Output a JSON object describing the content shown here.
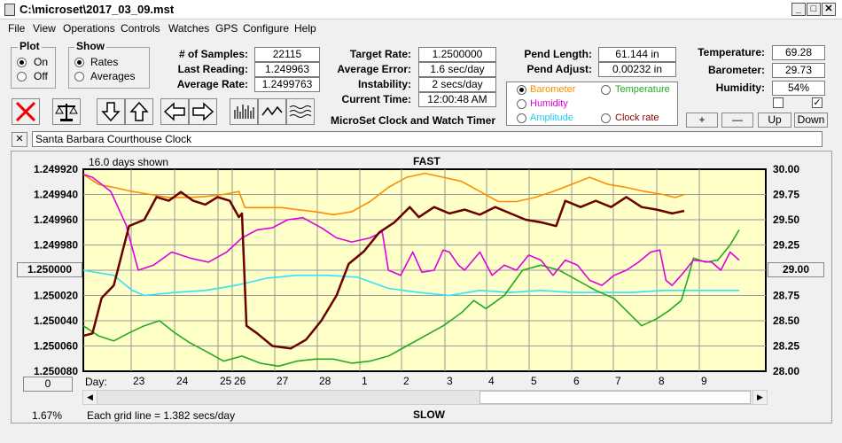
{
  "window": {
    "title": "C:\\microset\\2017_03_09.mst"
  },
  "menu": [
    "File",
    "View",
    "Operations",
    "Controls",
    "Watches",
    "GPS",
    "Configure",
    "Help"
  ],
  "plot_group": {
    "label": "Plot",
    "on": "On",
    "off": "Off"
  },
  "show_group": {
    "label": "Show",
    "rates": "Rates",
    "averages": "Averages"
  },
  "stats": {
    "samples_label": "# of Samples:",
    "samples": "22115",
    "last_label": "Last Reading:",
    "last": "1.249963",
    "avg_rate_label": "Average Rate:",
    "avg_rate": "1.2499763",
    "target_label": "Target Rate:",
    "target": "1.2500000",
    "avg_err_label": "Average Error:",
    "avg_err": "1.6 sec/day",
    "instab_label": "Instability:",
    "instab": "2 secs/day",
    "time_label": "Current Time:",
    "time": "12:00:48 AM",
    "pend_len_label": "Pend Length:",
    "pend_len": "61.144 in",
    "pend_adj_label": "Pend Adjust:",
    "pend_adj": "0.00232 in",
    "temp_label": "Temperature:",
    "temp": "69.28",
    "baro_label": "Barometer:",
    "baro": "29.73",
    "hum_label": "Humidity:",
    "hum": "54%"
  },
  "app_title": "MicroSet Clock and Watch Timer",
  "sensors": {
    "barometer": "Barometer",
    "temperature": "Temperature",
    "humidity": "Humidity",
    "amplitude": "Amplitude",
    "clock_rate": "Clock rate"
  },
  "scale_buttons": {
    "plus": "+",
    "minus": "—",
    "up": "Up",
    "down": "Down"
  },
  "clock_name": "Santa Barbara Courthouse Clock",
  "close_x": "✕",
  "chart_data": {
    "type": "line",
    "days_shown": "16.0 days shown",
    "top_label": "FAST",
    "bottom_label": "SLOW",
    "grid_note": "Each grid line = 1.382 secs/day",
    "percent": "1.67%",
    "left_box": "1.250000",
    "right_box": "29.00",
    "bottom_box": "0",
    "day_prefix": "Day:",
    "left_axis": {
      "ticks": [
        "1.249920",
        "1.249940",
        "1.249960",
        "1.249980",
        "1.250000",
        "1.250020",
        "1.250040",
        "1.250060",
        "1.250080"
      ],
      "inverted": true,
      "ylim": [
        1.24992,
        1.25008
      ]
    },
    "right_axis": {
      "ticks": [
        "30.00",
        "29.75",
        "29.50",
        "29.25",
        "29.00",
        "28.75",
        "28.50",
        "28.25",
        "28.00"
      ],
      "ylim": [
        28.0,
        30.0
      ]
    },
    "days": [
      "23",
      "24",
      "25",
      "26",
      "27",
      "28",
      "1",
      "2",
      "3",
      "4",
      "5",
      "6",
      "7",
      "8",
      "9"
    ],
    "colors": {
      "rate": "#6b0000",
      "barometer": "#ff8c00",
      "humidity": "#e000e0",
      "amplitude": "#33e0ff",
      "temperature": "#22aa22",
      "plot_bg": "#ffffc8"
    },
    "series": [
      {
        "key": "rate",
        "axis": "left",
        "points": [
          [
            0,
            1.250052
          ],
          [
            0.3,
            1.25005
          ],
          [
            0.6,
            1.250022
          ],
          [
            1,
            1.250012
          ],
          [
            1.5,
            1.249965
          ],
          [
            2,
            1.24996
          ],
          [
            2.4,
            1.249942
          ],
          [
            2.8,
            1.249945
          ],
          [
            3.2,
            1.249938
          ],
          [
            3.6,
            1.249945
          ],
          [
            4,
            1.249948
          ],
          [
            4.4,
            1.249942
          ],
          [
            4.8,
            1.249945
          ],
          [
            5.1,
            1.249958
          ],
          [
            5.2,
            1.249955
          ],
          [
            5.35,
            1.250044
          ],
          [
            5.7,
            1.25005
          ],
          [
            6.2,
            1.25006
          ],
          [
            6.8,
            1.250062
          ],
          [
            7.3,
            1.250055
          ],
          [
            7.8,
            1.25004
          ],
          [
            8.3,
            1.25002
          ],
          [
            8.7,
            1.249995
          ],
          [
            9.2,
            1.249985
          ],
          [
            9.7,
            1.24997
          ],
          [
            10.2,
            1.249962
          ],
          [
            10.7,
            1.24995
          ],
          [
            11,
            1.249958
          ],
          [
            11.5,
            1.24995
          ],
          [
            12,
            1.249955
          ],
          [
            12.5,
            1.249952
          ],
          [
            13,
            1.249956
          ],
          [
            13.5,
            1.24995
          ],
          [
            14,
            1.249955
          ],
          [
            14.5,
            1.24996
          ],
          [
            15,
            1.249962
          ],
          [
            15.5,
            1.249965
          ],
          [
            15.8,
            1.249945
          ],
          [
            16.3,
            1.24995
          ],
          [
            16.8,
            1.249945
          ],
          [
            17.3,
            1.24995
          ],
          [
            17.8,
            1.249942
          ],
          [
            18.3,
            1.24995
          ],
          [
            18.8,
            1.249952
          ],
          [
            19.3,
            1.249955
          ],
          [
            19.7,
            1.249953
          ]
        ]
      },
      {
        "key": "barometer",
        "axis": "right",
        "points": [
          [
            0,
            29.95
          ],
          [
            0.5,
            29.85
          ],
          [
            1,
            29.82
          ],
          [
            1.6,
            29.78
          ],
          [
            2.2,
            29.75
          ],
          [
            2.8,
            29.72
          ],
          [
            3.4,
            29.72
          ],
          [
            4,
            29.73
          ],
          [
            4.6,
            29.75
          ],
          [
            5.1,
            29.78
          ],
          [
            5.3,
            29.62
          ],
          [
            5.9,
            29.62
          ],
          [
            6.5,
            29.62
          ],
          [
            7,
            29.6
          ],
          [
            7.6,
            29.58
          ],
          [
            8.2,
            29.55
          ],
          [
            8.8,
            29.58
          ],
          [
            9.4,
            29.68
          ],
          [
            10,
            29.82
          ],
          [
            10.6,
            29.92
          ],
          [
            11.2,
            29.96
          ],
          [
            11.8,
            29.92
          ],
          [
            12.4,
            29.88
          ],
          [
            13,
            29.78
          ],
          [
            13.6,
            29.68
          ],
          [
            14.2,
            29.68
          ],
          [
            14.8,
            29.72
          ],
          [
            15.4,
            29.78
          ],
          [
            16,
            29.85
          ],
          [
            16.6,
            29.92
          ],
          [
            17.2,
            29.85
          ],
          [
            17.8,
            29.82
          ],
          [
            18.4,
            29.78
          ],
          [
            19,
            29.75
          ],
          [
            19.4,
            29.72
          ],
          [
            19.7,
            29.75
          ]
        ]
      },
      {
        "key": "humidity",
        "axis": "right",
        "points": [
          [
            0,
            29.95
          ],
          [
            0.3,
            29.92
          ],
          [
            0.6,
            29.85
          ],
          [
            0.9,
            29.78
          ],
          [
            1.4,
            29.45
          ],
          [
            1.8,
            29.0
          ],
          [
            2.3,
            29.05
          ],
          [
            2.9,
            29.18
          ],
          [
            3.5,
            29.12
          ],
          [
            4.1,
            29.08
          ],
          [
            4.7,
            29.18
          ],
          [
            5.2,
            29.32
          ],
          [
            5.7,
            29.4
          ],
          [
            6.2,
            29.42
          ],
          [
            6.7,
            29.5
          ],
          [
            7.2,
            29.52
          ],
          [
            7.8,
            29.42
          ],
          [
            8.3,
            29.32
          ],
          [
            8.8,
            29.28
          ],
          [
            9.4,
            29.32
          ],
          [
            9.8,
            29.38
          ],
          [
            10.0,
            29.0
          ],
          [
            10.4,
            28.95
          ],
          [
            10.8,
            29.18
          ],
          [
            11.1,
            28.98
          ],
          [
            11.5,
            29.0
          ],
          [
            11.8,
            29.2
          ],
          [
            12.0,
            29.18
          ],
          [
            12.3,
            29.05
          ],
          [
            12.5,
            29.0
          ],
          [
            13.0,
            29.18
          ],
          [
            13.4,
            28.95
          ],
          [
            13.8,
            29.05
          ],
          [
            14.2,
            29.0
          ],
          [
            14.6,
            29.15
          ],
          [
            15.0,
            29.1
          ],
          [
            15.4,
            28.95
          ],
          [
            15.8,
            29.1
          ],
          [
            16.2,
            29.05
          ],
          [
            16.6,
            28.9
          ],
          [
            17.0,
            28.85
          ],
          [
            17.4,
            28.95
          ],
          [
            17.8,
            29.0
          ],
          [
            18.2,
            29.08
          ],
          [
            18.6,
            29.18
          ],
          [
            18.9,
            29.2
          ],
          [
            19.1,
            28.9
          ],
          [
            19.3,
            28.85
          ],
          [
            19.6,
            28.95
          ],
          [
            20.0,
            29.1
          ],
          [
            20.6,
            29.08
          ],
          [
            20.9,
            29.0
          ],
          [
            21.2,
            29.18
          ],
          [
            21.5,
            29.1
          ]
        ]
      },
      {
        "key": "amplitude",
        "axis": "right",
        "points": [
          [
            0,
            29.0
          ],
          [
            1,
            28.95
          ],
          [
            1.6,
            28.8
          ],
          [
            2,
            28.75
          ],
          [
            3,
            28.78
          ],
          [
            4,
            28.8
          ],
          [
            5,
            28.85
          ],
          [
            6,
            28.92
          ],
          [
            7,
            28.95
          ],
          [
            8,
            28.95
          ],
          [
            9,
            28.93
          ],
          [
            10,
            28.82
          ],
          [
            11,
            28.78
          ],
          [
            12,
            28.75
          ],
          [
            13,
            28.8
          ],
          [
            14,
            28.78
          ],
          [
            15,
            28.8
          ],
          [
            16,
            28.78
          ],
          [
            17,
            28.78
          ],
          [
            18,
            28.78
          ],
          [
            19,
            28.8
          ],
          [
            20,
            28.8
          ],
          [
            21,
            28.8
          ],
          [
            21.5,
            28.8
          ]
        ]
      },
      {
        "key": "temperature",
        "axis": "right",
        "points": [
          [
            0,
            28.45
          ],
          [
            0.5,
            28.35
          ],
          [
            1,
            28.3
          ],
          [
            1.5,
            28.38
          ],
          [
            2,
            28.45
          ],
          [
            2.5,
            28.5
          ],
          [
            3,
            28.38
          ],
          [
            3.5,
            28.28
          ],
          [
            4,
            28.2
          ],
          [
            4.6,
            28.1
          ],
          [
            5.2,
            28.15
          ],
          [
            5.8,
            28.08
          ],
          [
            6.4,
            28.05
          ],
          [
            7,
            28.1
          ],
          [
            7.6,
            28.12
          ],
          [
            8.2,
            28.12
          ],
          [
            8.8,
            28.08
          ],
          [
            9.4,
            28.1
          ],
          [
            10,
            28.15
          ],
          [
            10.6,
            28.25
          ],
          [
            11.2,
            28.35
          ],
          [
            11.8,
            28.45
          ],
          [
            12.4,
            28.58
          ],
          [
            12.8,
            28.7
          ],
          [
            13.2,
            28.62
          ],
          [
            13.8,
            28.75
          ],
          [
            14.4,
            29.0
          ],
          [
            15.0,
            29.05
          ],
          [
            15.6,
            29.0
          ],
          [
            16.2,
            28.9
          ],
          [
            16.8,
            28.8
          ],
          [
            17.4,
            28.72
          ],
          [
            17.8,
            28.6
          ],
          [
            18.3,
            28.45
          ],
          [
            18.8,
            28.52
          ],
          [
            19.2,
            28.6
          ],
          [
            19.6,
            28.7
          ],
          [
            19.8,
            28.9
          ],
          [
            20.0,
            29.12
          ],
          [
            20.4,
            29.08
          ],
          [
            20.8,
            29.1
          ],
          [
            21.2,
            29.25
          ],
          [
            21.5,
            29.4
          ]
        ]
      }
    ]
  }
}
